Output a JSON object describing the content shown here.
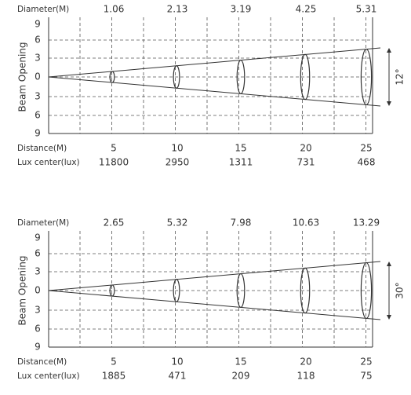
{
  "panels": [
    {
      "diameter_label": "Diameter(M)",
      "diameters": [
        "1.06",
        "2.13",
        "3.19",
        "4.25",
        "5.31"
      ],
      "y_axis_label": "Beam Opening",
      "y_ticks": [
        "9",
        "6",
        "3",
        "0",
        "3",
        "6",
        "9"
      ],
      "angle": "12°",
      "distance_label": "Distance(M)",
      "distances": [
        "5",
        "10",
        "15",
        "20",
        "25"
      ],
      "lux_label": "Lux center(lux)",
      "lux": [
        "11800",
        "2950",
        "1311",
        "731",
        "468"
      ]
    },
    {
      "diameter_label": "Diameter(M)",
      "diameters": [
        "2.65",
        "5.32",
        "7.98",
        "10.63",
        "13.29"
      ],
      "y_axis_label": "Beam Opening",
      "y_ticks": [
        "9",
        "6",
        "3",
        "0",
        "3",
        "6",
        "9"
      ],
      "angle": "30°",
      "distance_label": "Distance(M)",
      "distances": [
        "5",
        "10",
        "15",
        "20",
        "25"
      ],
      "lux_label": "Lux center(lux)",
      "lux": [
        "1885",
        "471",
        "209",
        "118",
        "75"
      ]
    }
  ]
}
